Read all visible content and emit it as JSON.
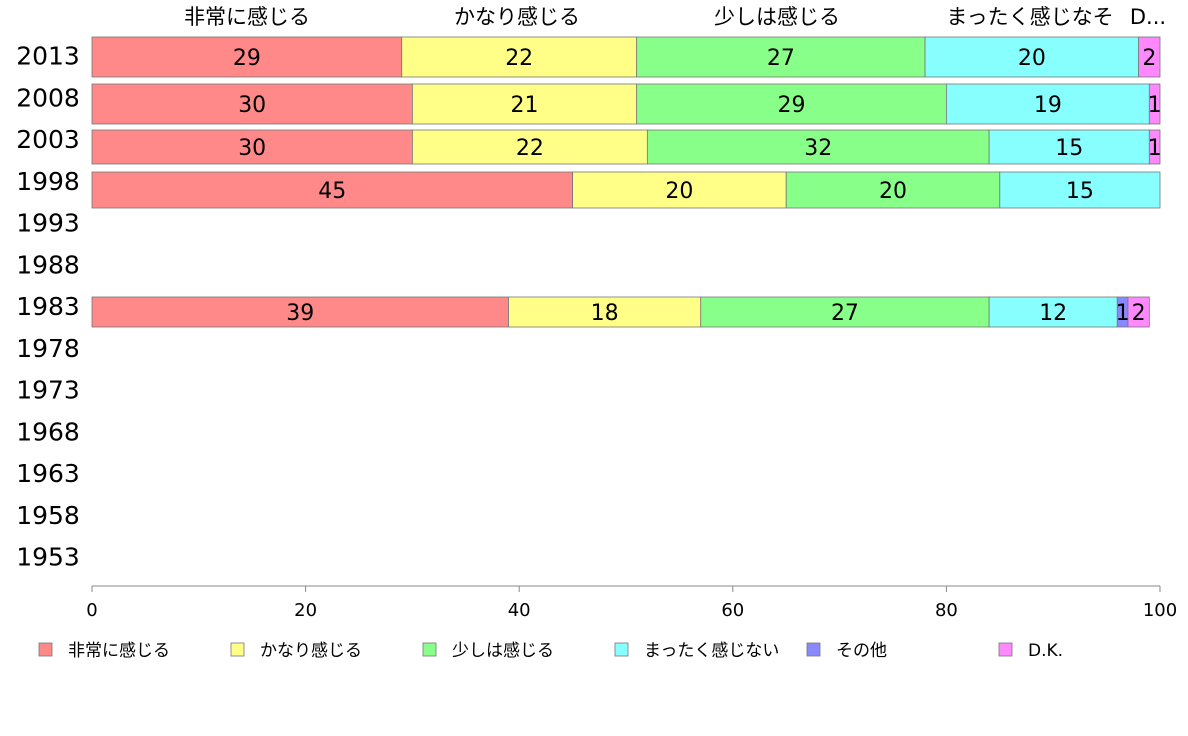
{
  "chart_data": {
    "type": "bar",
    "orientation": "horizontal",
    "stacked": true,
    "xlim": [
      0,
      100
    ],
    "x_ticks": [
      "0",
      "20",
      "40",
      "60",
      "80",
      "100"
    ],
    "categories": [
      "2013",
      "2008",
      "2003",
      "1998",
      "1993",
      "1988",
      "1983",
      "1978",
      "1973",
      "1968",
      "1963",
      "1958",
      "1953"
    ],
    "top_labels": [
      "非常に感じる",
      "かなり感じる",
      "少しは感じる",
      "まったく感じなそ",
      "D..."
    ],
    "series": [
      {
        "name": "非常に感じる",
        "color": "#ff8888",
        "values": [
          29,
          30,
          30,
          45,
          null,
          null,
          39,
          null,
          null,
          null,
          null,
          null,
          null
        ]
      },
      {
        "name": "かなり感じる",
        "color": "#ffff88",
        "values": [
          22,
          21,
          22,
          20,
          null,
          null,
          18,
          null,
          null,
          null,
          null,
          null,
          null
        ]
      },
      {
        "name": "少しは感じる",
        "color": "#88ff88",
        "values": [
          27,
          29,
          32,
          20,
          null,
          null,
          27,
          null,
          null,
          null,
          null,
          null,
          null
        ]
      },
      {
        "name": "まったく感じない",
        "color": "#88ffff",
        "values": [
          20,
          19,
          15,
          15,
          null,
          null,
          12,
          null,
          null,
          null,
          null,
          null,
          null
        ]
      },
      {
        "name": "その他",
        "color": "#8888ff",
        "values": [
          0,
          0,
          0,
          0,
          null,
          null,
          1,
          null,
          null,
          null,
          null,
          null,
          null
        ]
      },
      {
        "name": "D.K.",
        "color": "#ff88ff",
        "values": [
          2,
          1,
          1,
          0,
          null,
          null,
          2,
          null,
          null,
          null,
          null,
          null,
          null
        ]
      }
    ],
    "legend_position": "bottom",
    "grid": false
  }
}
